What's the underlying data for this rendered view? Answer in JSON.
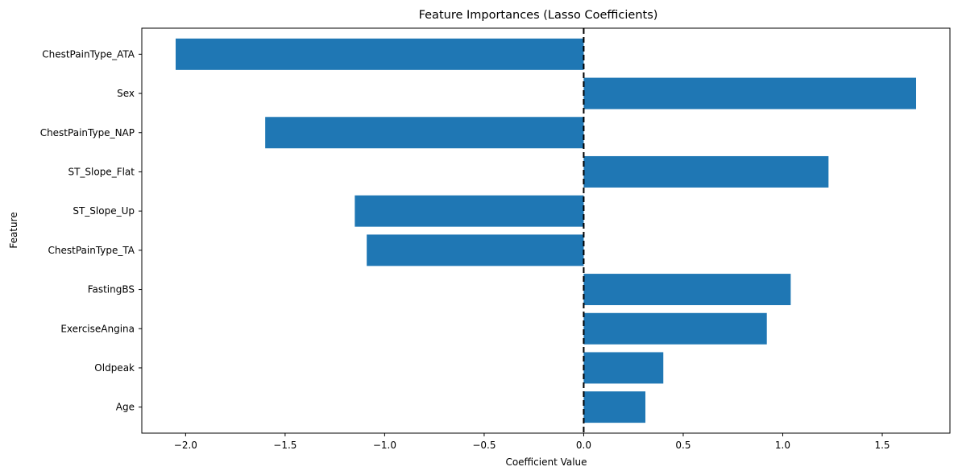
{
  "chart_data": {
    "type": "bar",
    "orientation": "horizontal",
    "title": "Feature Importances (Lasso Coefficients)",
    "xlabel": "Coefficient Value",
    "ylabel": "Feature",
    "xlim": [
      -2.22,
      1.84
    ],
    "xticks": [
      -2.0,
      -1.5,
      -1.0,
      -0.5,
      0.0,
      0.5,
      1.0,
      1.5
    ],
    "xtick_labels": [
      "−2.0",
      "−1.5",
      "−1.0",
      "−0.5",
      "0.0",
      "0.5",
      "1.0",
      "1.5"
    ],
    "categories": [
      "ChestPainType_ATA",
      "Sex",
      "ChestPainType_NAP",
      "ST_Slope_Flat",
      "ST_Slope_Up",
      "ChestPainType_TA",
      "FastingBS",
      "ExerciseAngina",
      "Oldpeak",
      "Age"
    ],
    "values": [
      -2.05,
      1.67,
      -1.6,
      1.23,
      -1.15,
      -1.09,
      1.04,
      0.92,
      0.4,
      0.31
    ],
    "reference_line": {
      "x": 0,
      "style": "dashed",
      "color": "#000000"
    },
    "bar_color": "#1f77b4",
    "grid": false,
    "legend": "none"
  }
}
